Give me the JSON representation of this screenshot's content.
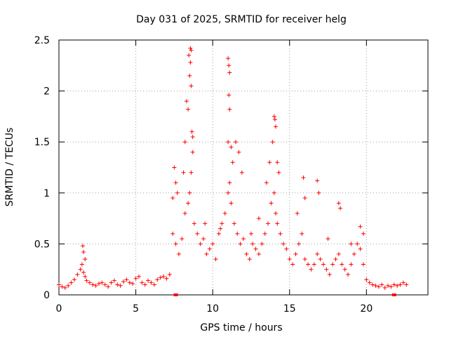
{
  "chart_data": {
    "type": "scatter",
    "title": "Day 031 of 2025, SRMTID for receiver helg",
    "xlabel": "GPS time / hours",
    "ylabel": "SRMTID / TECUs",
    "xlim": [
      0,
      24
    ],
    "ylim": [
      0,
      2.5
    ],
    "x_ticks": [
      0,
      5,
      10,
      15,
      20
    ],
    "x_tick_labels": [
      "0",
      "5",
      "10",
      "15",
      "20"
    ],
    "y_ticks": [
      0,
      0.5,
      1,
      1.5,
      2,
      2.5
    ],
    "y_tick_labels": [
      "0",
      "0.5",
      "1",
      "1.5",
      "2",
      "2.5"
    ],
    "grid": true,
    "marker": "plus",
    "color": "#ff0000",
    "series": [
      {
        "name": "SRMTID",
        "x": [
          0.0,
          0.2,
          0.4,
          0.6,
          0.8,
          1.0,
          1.2,
          1.4,
          1.5,
          1.6,
          1.7,
          1.8,
          2.0,
          2.2,
          2.4,
          2.6,
          2.8,
          3.0,
          3.2,
          3.4,
          3.6,
          3.8,
          4.0,
          4.2,
          4.4,
          4.6,
          4.8,
          5.0,
          5.2,
          5.4,
          5.6,
          5.8,
          6.0,
          6.2,
          6.4,
          6.6,
          6.8,
          7.0,
          7.2,
          7.4,
          7.6,
          7.8,
          8.0,
          8.2,
          8.4,
          8.5,
          8.6,
          8.7,
          8.8,
          9.0,
          9.2,
          9.4,
          9.6,
          9.8,
          10.0,
          10.2,
          10.4,
          10.6,
          10.8,
          11.0,
          11.1,
          11.2,
          11.4,
          11.6,
          11.8,
          12.0,
          12.2,
          12.4,
          12.6,
          12.8,
          13.0,
          13.2,
          13.4,
          13.6,
          13.8,
          14.0,
          14.1,
          14.2,
          14.4,
          14.6,
          14.8,
          15.0,
          15.2,
          15.4,
          15.6,
          15.8,
          16.0,
          16.2,
          16.4,
          16.6,
          16.8,
          17.0,
          17.2,
          17.4,
          17.6,
          17.8,
          18.0,
          18.2,
          18.4,
          18.6,
          18.8,
          19.0,
          19.2,
          19.4,
          19.6,
          19.8,
          20.0,
          20.2,
          20.4,
          20.6,
          20.8,
          21.0,
          21.2,
          21.4,
          21.6,
          21.8,
          22.0,
          22.2,
          22.4,
          22.6,
          8.55,
          8.6,
          8.45,
          8.55,
          8.5,
          8.6,
          8.65,
          8.7,
          8.4,
          8.3,
          8.2,
          8.1,
          11.0,
          11.05,
          11.1,
          11.05,
          11.1,
          11.0,
          11.2,
          11.3,
          11.5,
          11.7,
          11.9,
          14.0,
          14.05,
          14.1,
          13.9,
          14.2,
          14.3,
          13.7,
          13.5,
          15.9,
          16.0,
          16.8,
          16.9,
          18.2,
          18.3,
          1.55,
          1.6,
          1.7,
          7.5,
          7.6,
          7.7,
          7.4,
          9.5,
          10.5,
          12.5,
          13.0,
          15.5,
          17.5,
          19.0,
          19.6,
          19.8
        ],
        "y": [
          0.1,
          0.08,
          0.07,
          0.09,
          0.12,
          0.15,
          0.2,
          0.25,
          0.3,
          0.22,
          0.18,
          0.14,
          0.12,
          0.1,
          0.09,
          0.11,
          0.12,
          0.1,
          0.08,
          0.12,
          0.14,
          0.1,
          0.09,
          0.13,
          0.15,
          0.12,
          0.11,
          0.16,
          0.18,
          0.12,
          0.1,
          0.14,
          0.12,
          0.1,
          0.15,
          0.17,
          0.18,
          0.16,
          0.2,
          0.6,
          0.5,
          0.4,
          0.55,
          0.8,
          0.9,
          1.0,
          1.2,
          1.4,
          0.7,
          0.6,
          0.5,
          0.55,
          0.4,
          0.45,
          0.5,
          0.35,
          0.6,
          0.7,
          0.8,
          1.0,
          1.1,
          0.9,
          0.7,
          0.6,
          0.5,
          0.55,
          0.4,
          0.35,
          0.5,
          0.45,
          0.4,
          0.5,
          0.6,
          0.7,
          0.9,
          1.0,
          0.8,
          0.7,
          0.6,
          0.5,
          0.45,
          0.35,
          0.3,
          0.4,
          0.5,
          0.6,
          0.35,
          0.3,
          0.25,
          0.3,
          0.4,
          0.35,
          0.3,
          0.25,
          0.2,
          0.3,
          0.35,
          0.4,
          0.3,
          0.25,
          0.2,
          0.3,
          0.4,
          0.5,
          0.45,
          0.3,
          0.15,
          0.12,
          0.1,
          0.09,
          0.08,
          0.1,
          0.07,
          0.09,
          0.08,
          0.1,
          0.09,
          0.1,
          0.12,
          0.1,
          2.42,
          2.4,
          2.35,
          2.28,
          2.15,
          2.05,
          1.6,
          1.55,
          1.82,
          1.9,
          1.5,
          1.2,
          2.32,
          2.25,
          2.18,
          1.96,
          1.82,
          1.5,
          1.45,
          1.3,
          1.5,
          1.4,
          1.2,
          1.75,
          1.72,
          1.65,
          1.5,
          1.3,
          1.2,
          1.3,
          1.1,
          1.15,
          0.95,
          1.12,
          1.0,
          0.9,
          0.85,
          0.48,
          0.42,
          0.35,
          1.25,
          1.1,
          1.0,
          0.95,
          0.7,
          0.65,
          0.6,
          0.75,
          0.8,
          0.55,
          0.5,
          0.67,
          0.6
        ]
      }
    ],
    "axis_markers": [
      {
        "x": 7.6,
        "y": 0
      },
      {
        "x": 21.8,
        "y": 0
      }
    ]
  }
}
